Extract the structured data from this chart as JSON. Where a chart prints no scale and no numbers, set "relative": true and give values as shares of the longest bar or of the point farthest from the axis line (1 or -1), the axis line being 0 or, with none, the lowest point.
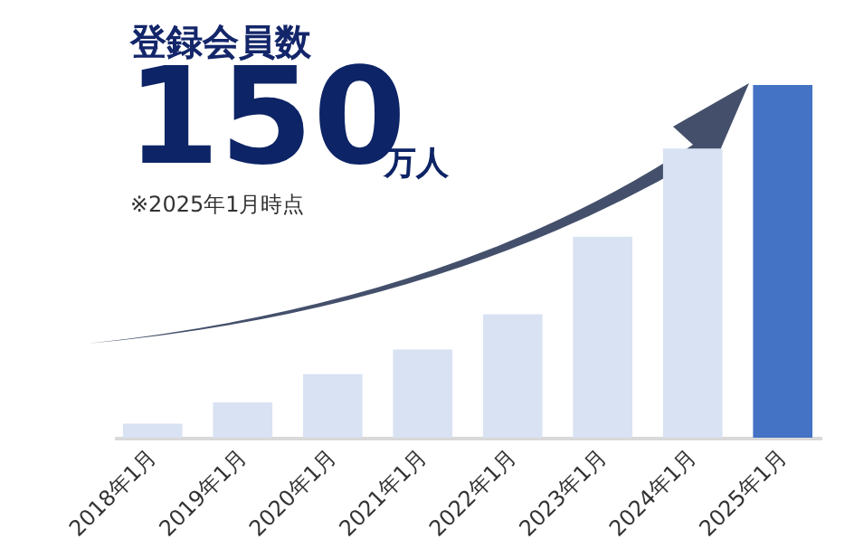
{
  "chart_data": {
    "type": "bar",
    "relative": true,
    "title": "登録会員数",
    "annotations": [
      "150",
      "万人",
      "※2025年1月時点"
    ],
    "categories": [
      "2018年1月",
      "2019年1月",
      "2020年1月",
      "2021年1月",
      "2022年1月",
      "2023年1月",
      "2024年1月",
      "2025年1月"
    ],
    "values": [
      0.04,
      0.1,
      0.18,
      0.25,
      0.35,
      0.57,
      0.82,
      1
    ],
    "colors": [
      "#d9e2f3",
      "#d9e2f3",
      "#d9e2f3",
      "#d9e2f3",
      "#d9e2f3",
      "#d9e2f3",
      "#d9e2f3",
      "#4472c4"
    ]
  }
}
